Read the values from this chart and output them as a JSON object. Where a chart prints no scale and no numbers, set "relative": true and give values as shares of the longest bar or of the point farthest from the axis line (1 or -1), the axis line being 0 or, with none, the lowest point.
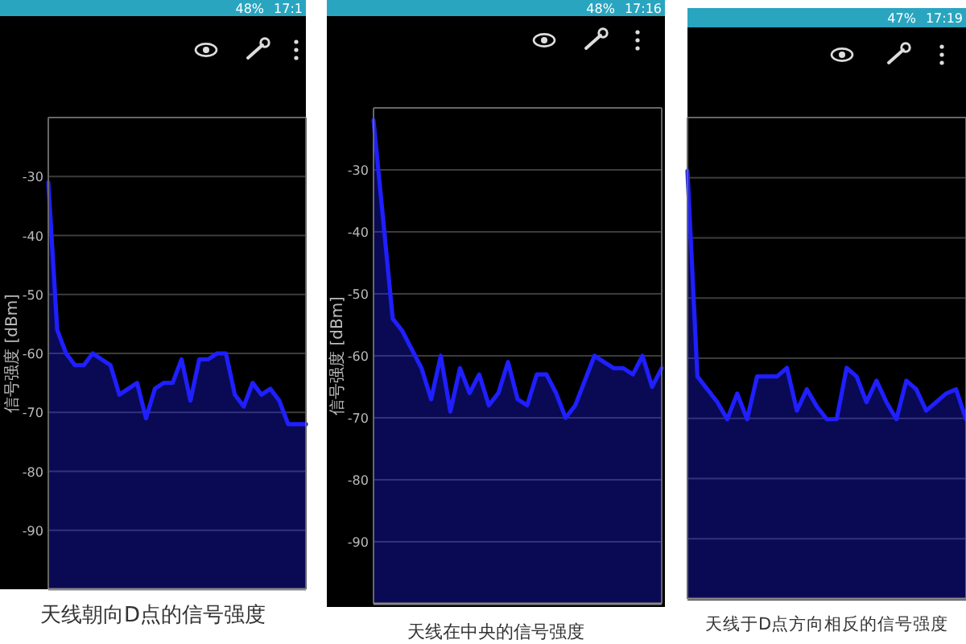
{
  "chart_data": [
    {
      "type": "area",
      "title": "天线朝向D点的信号强度",
      "ylabel": "信号强度 [dBm]",
      "categories": [
        null,
        null,
        null,
        null,
        null,
        null,
        null,
        null,
        null,
        null,
        null,
        null,
        null,
        null,
        null,
        null,
        null,
        null,
        null,
        null,
        null,
        null,
        null,
        null,
        null,
        null,
        null,
        null,
        null,
        null
      ],
      "values": [
        -31,
        -56,
        -60,
        -62,
        -62,
        -60,
        -61,
        -62,
        -67,
        -66,
        -65,
        -71,
        -66,
        -65,
        -65,
        -61,
        -68,
        -61,
        -61,
        -60,
        -60,
        -67,
        -69,
        -65,
        -67,
        -66,
        -68,
        -72,
        -72,
        -72
      ],
      "color": "#1f1fff",
      "ylim": [
        -100,
        -20
      ],
      "yticks": [
        -30,
        -40,
        -50,
        -60,
        -70,
        -80,
        -90
      ],
      "grid": "y",
      "tick_labels": "y",
      "annotations": [
        "48%",
        "17:1"
      ]
    },
    {
      "type": "area",
      "title": "天线在中央的信号强度",
      "ylabel": "信号强度 [dBm]",
      "categories": [
        null,
        null,
        null,
        null,
        null,
        null,
        null,
        null,
        null,
        null,
        null,
        null,
        null,
        null,
        null,
        null,
        null,
        null,
        null,
        null,
        null,
        null,
        null,
        null,
        null,
        null,
        null,
        null,
        null,
        null,
        null
      ],
      "values": [
        -22,
        -38,
        -54,
        -56,
        -59,
        -62,
        -67,
        -60,
        -69,
        -62,
        -66,
        -63,
        -68,
        -66,
        -61,
        -67,
        -68,
        -63,
        -63,
        -66,
        -70,
        -68,
        -64,
        -60,
        -61,
        -62,
        -62,
        -63,
        -60,
        -65,
        -62
      ],
      "color": "#1f1fff",
      "ylim": [
        -100,
        -20
      ],
      "yticks": [
        -30,
        -40,
        -50,
        -60,
        -70,
        -80,
        -90
      ],
      "grid": "y",
      "tick_labels": "y",
      "annotations": [
        "48%",
        "17:16"
      ]
    },
    {
      "type": "area",
      "title": "天线于D点方向相反的信号强度",
      "relative": true,
      "categories": [
        null,
        null,
        null,
        null,
        null,
        null,
        null,
        null,
        null,
        null,
        null,
        null,
        null,
        null,
        null,
        null,
        null,
        null,
        null,
        null,
        null,
        null,
        null,
        null,
        null,
        null,
        null,
        null,
        null
      ],
      "values": [
        1,
        0.52,
        0.49,
        0.46,
        0.42,
        0.48,
        0.42,
        0.52,
        0.52,
        0.52,
        0.54,
        0.44,
        0.49,
        0.45,
        0.42,
        0.42,
        0.54,
        0.52,
        0.46,
        0.51,
        0.46,
        0.42,
        0.51,
        0.49,
        0.44,
        0.46,
        0.48,
        0.49,
        0.42
      ],
      "color": "#1f1fff",
      "grid": "y",
      "tick_labels": false,
      "annotations": [
        "47%",
        "17:19"
      ]
    }
  ]
}
